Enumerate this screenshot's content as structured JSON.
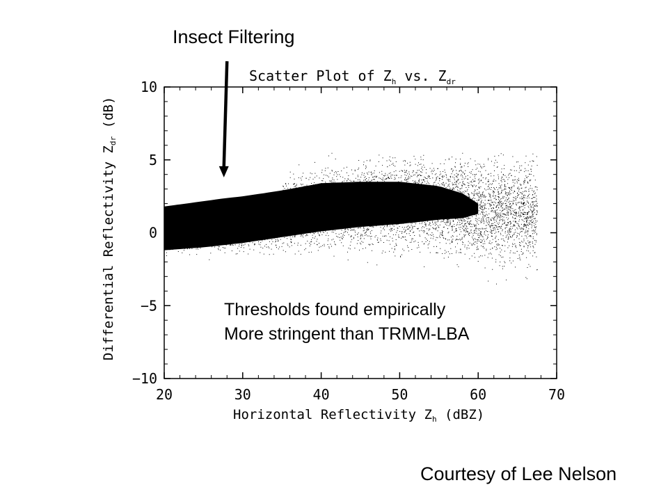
{
  "slide": {
    "insect_label": "Insect Filtering",
    "annotation_line1": "Thresholds found empirically",
    "annotation_line2": "More stringent than TRMM-LBA",
    "credit": "Courtesy of Lee Nelson"
  },
  "chart_data": {
    "type": "scatter",
    "title": "Scatter Plot of Zh vs. Zdr",
    "title_parts": {
      "main": "Scatter Plot of Z",
      "sub1": "h",
      "mid": " vs. Z",
      "sub2": "dr"
    },
    "xlabel": "Horizontal Reflectivity Zh (dBZ)",
    "xlabel_parts": {
      "main": "Horizontal Reflectivity Z",
      "sub": "h",
      "tail": " (dBZ)"
    },
    "ylabel": "Differential Reflectivity Zdr (dB)",
    "ylabel_parts": {
      "main": "Differential Reflectivity Z",
      "sub": "dr",
      "tail": " (dB)"
    },
    "xlim": [
      20,
      70
    ],
    "ylim": [
      -10,
      10
    ],
    "xticks": [
      20,
      30,
      40,
      50,
      60,
      70
    ],
    "xtick_labels": [
      "20",
      "30",
      "40",
      "50",
      "60",
      "70"
    ],
    "yticks": [
      -10,
      -5,
      0,
      5,
      10
    ],
    "ytick_labels": [
      "−10",
      "−5",
      "0",
      "5",
      "10"
    ],
    "grid": false,
    "point_color": "#000000",
    "filter_threshold": {
      "x": [
        20,
        35,
        35,
        70
      ],
      "y": [
        1.8,
        2.9,
        5.5,
        5.5
      ]
    },
    "dense_region": {
      "x": [
        20,
        25,
        30,
        35,
        40,
        45,
        50,
        55,
        58,
        60
      ],
      "upper": [
        1.8,
        2.2,
        2.5,
        2.9,
        3.4,
        3.5,
        3.5,
        3.2,
        2.7,
        2.0
      ],
      "lower": [
        -1.2,
        -1.0,
        -0.7,
        -0.3,
        0.1,
        0.4,
        0.6,
        0.9,
        1.0,
        1.3
      ]
    },
    "arrow": {
      "x_from": 28.0,
      "y_from": 12.0,
      "x_to": 27.6,
      "y_to": 3.8
    }
  }
}
